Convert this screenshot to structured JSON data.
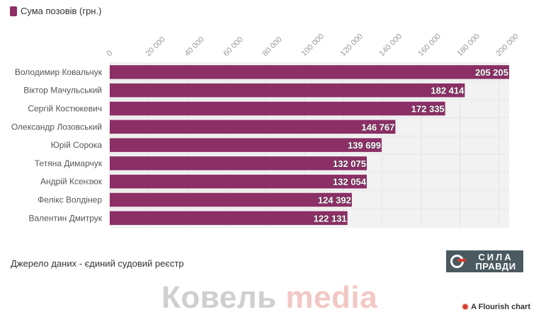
{
  "legend": {
    "label": "Сума позовів (грн.)",
    "color": "#8b2f66"
  },
  "chart_data": {
    "type": "bar",
    "orientation": "horizontal",
    "categories": [
      "Володимир Ковальчук",
      "Віктор Мачульський",
      "Сергій Костюкевич",
      "Олександр Лозовський",
      "Юрій Сорока",
      "Тетяна Димарчук",
      "Андрій Ксензюк",
      "Фелікс Волдінер",
      "Валентин Дмитрук"
    ],
    "series": [
      {
        "name": "Сума позовів (грн.)",
        "values": [
          205205,
          182414,
          172335,
          146767,
          139699,
          132075,
          132054,
          124392,
          122131
        ]
      }
    ],
    "value_labels": [
      "205 205",
      "182 414",
      "172 335",
      "146 767",
      "139 699",
      "132 075",
      "132 054",
      "124 392",
      "122 131"
    ],
    "xlim": [
      0,
      205205
    ],
    "x_ticks": [
      0,
      20000,
      40000,
      60000,
      80000,
      100000,
      120000,
      140000,
      160000,
      180000,
      200000
    ],
    "x_tick_labels": [
      "0",
      "20 000",
      "40 000",
      "60 000",
      "80 000",
      "100 000",
      "120 000",
      "140 000",
      "160 000",
      "180 000",
      "200 000"
    ],
    "axis_position": "top",
    "grid": true,
    "legend_position": "top-left",
    "bar_color": "#8b2f66",
    "plot_background": "#f2f2f2"
  },
  "source_text": "Джерело даних - єдиний судовий реєстр",
  "brand": {
    "top": "СИЛА",
    "bottom": "ПРАВДИ",
    "bg": "#4a5a60",
    "accent": "#d63c30"
  },
  "watermark": {
    "part1": "Ковель",
    "part2": "media"
  },
  "credit": {
    "icon": "✹",
    "text": "A Flourish chart"
  }
}
